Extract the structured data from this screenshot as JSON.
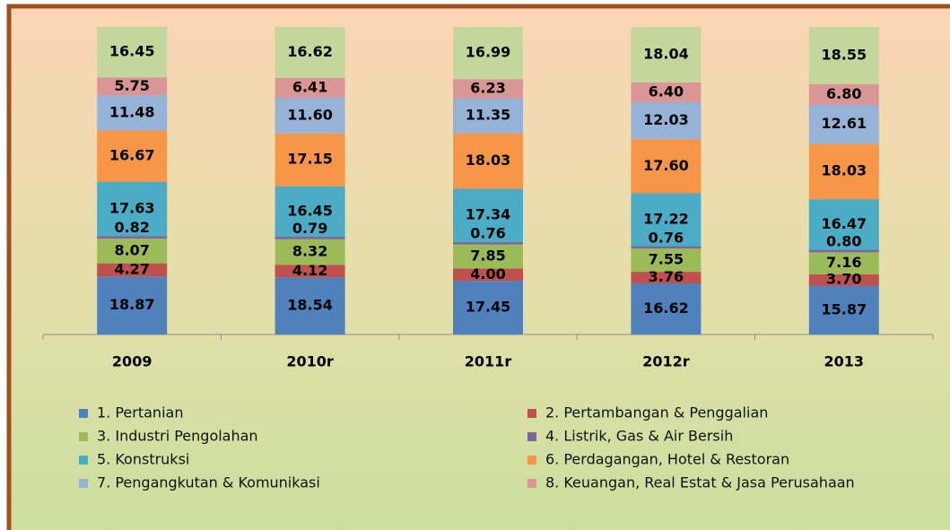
{
  "chart_data": {
    "type": "stacked_bar",
    "categories": [
      "2009",
      "2010r",
      "2011r",
      "2012r",
      "2013"
    ],
    "ylim": [
      0,
      100
    ],
    "series": [
      {
        "name": "1. Pertanian",
        "color": "#4f81bd",
        "values": [
          18.87,
          18.54,
          17.45,
          16.62,
          15.87
        ],
        "value_labels": [
          "18.87",
          "18.54",
          "17.45",
          "16.62",
          "15.87"
        ]
      },
      {
        "name": "2. Pertambangan & Penggalian",
        "color": "#c0504d",
        "values": [
          4.27,
          4.12,
          4.0,
          3.76,
          3.7
        ],
        "value_labels": [
          "4.27",
          "4.12",
          "4.00",
          "3.76",
          "3.70"
        ]
      },
      {
        "name": "3. Industri Pengolahan",
        "color": "#9bbb59",
        "values": [
          8.07,
          8.32,
          7.85,
          7.55,
          7.16
        ],
        "value_labels": [
          "8.07",
          "8.32",
          "7.85",
          "7.55",
          "7.16"
        ]
      },
      {
        "name": "4. Listrik, Gas & Air Bersih",
        "color": "#8064a2",
        "values": [
          0.82,
          0.79,
          0.76,
          0.76,
          0.8
        ],
        "value_labels": [
          "0.82",
          "0.79",
          "0.76",
          "0.76",
          "0.80"
        ]
      },
      {
        "name": "5. Konstruksi",
        "color": "#4bacc6",
        "values": [
          17.63,
          16.45,
          17.34,
          17.22,
          16.47
        ],
        "value_labels": [
          "17.63",
          "16.45",
          "17.34",
          "17.22",
          "16.47"
        ]
      },
      {
        "name": "6. Perdagangan, Hotel & Restoran",
        "color": "#f79646",
        "values": [
          16.67,
          17.15,
          18.03,
          17.6,
          18.03
        ],
        "value_labels": [
          "16.67",
          "17.15",
          "18.03",
          "17.60",
          "18.03"
        ]
      },
      {
        "name": "7. Pengangkutan & Komunikasi",
        "color": "#95b3d7",
        "values": [
          11.48,
          11.6,
          11.35,
          12.03,
          12.61
        ],
        "value_labels": [
          "11.48",
          "11.60",
          "11.35",
          "12.03",
          "12.61"
        ]
      },
      {
        "name": "8. Keuangan, Real Estat & Jasa Perusahaan",
        "color": "#d99694",
        "values": [
          5.75,
          6.41,
          6.23,
          6.4,
          6.8
        ],
        "value_labels": [
          "5.75",
          "6.41",
          "6.23",
          "6.40",
          "6.80"
        ]
      },
      {
        "color": "#c3d69b",
        "values": [
          16.45,
          16.62,
          16.99,
          18.04,
          18.55
        ],
        "value_labels": [
          "16.45",
          "16.62",
          "16.99",
          "18.04",
          "18.55"
        ]
      }
    ]
  }
}
